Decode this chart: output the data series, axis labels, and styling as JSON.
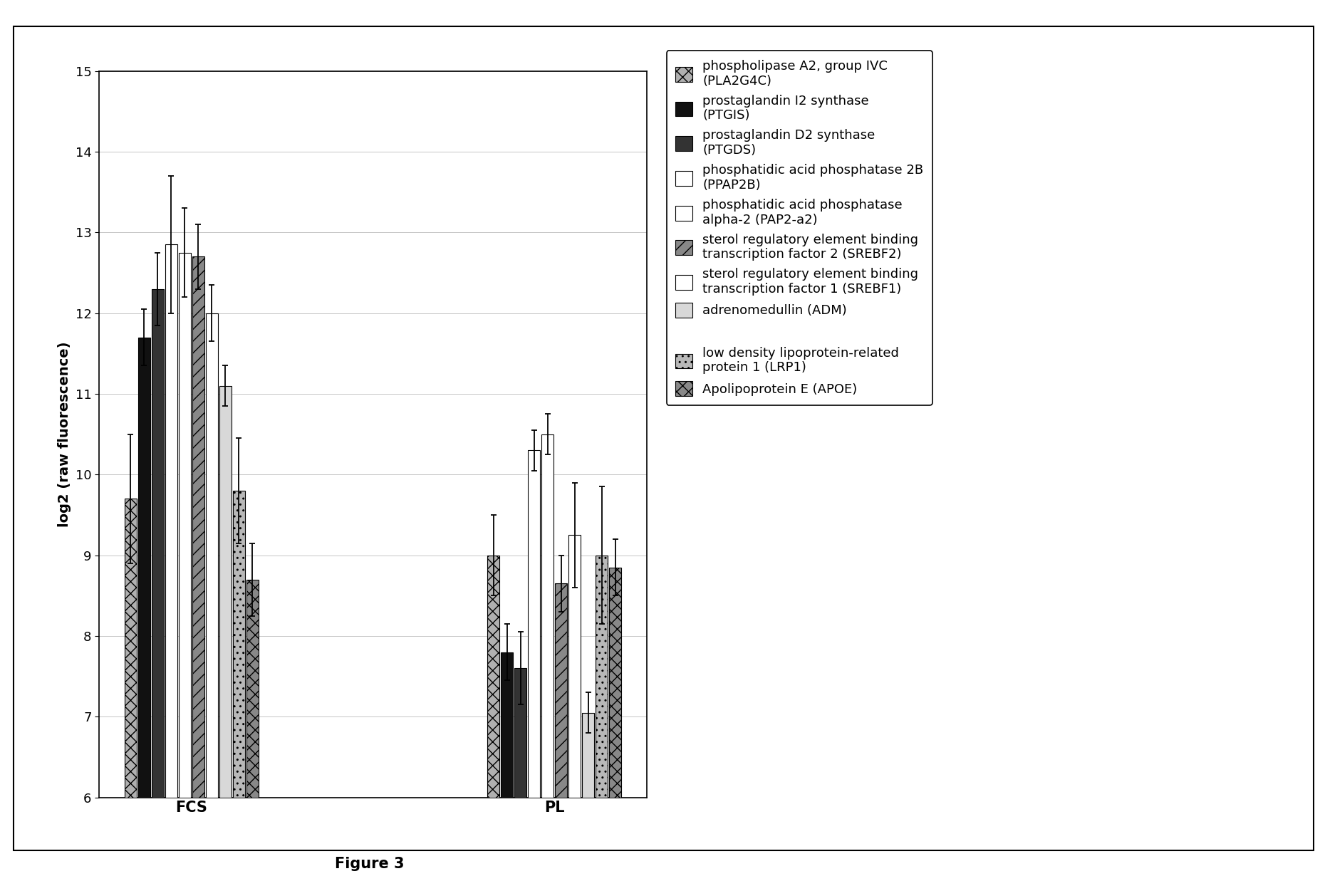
{
  "groups": [
    "FCS",
    "PL"
  ],
  "series": [
    {
      "label": "phospholipase A2, group IVC\n(PLA2G4C)",
      "fcs_val": 9.7,
      "fcs_err": 0.8,
      "pl_val": 9.0,
      "pl_err": 0.5,
      "fc": "#b0b0b0",
      "hatch": "xx",
      "ec": "#000000"
    },
    {
      "label": "prostaglandin I2 synthase\n(PTGIS)",
      "fcs_val": 11.7,
      "fcs_err": 0.35,
      "pl_val": 7.8,
      "pl_err": 0.35,
      "fc": "#111111",
      "hatch": "",
      "ec": "#000000"
    },
    {
      "label": "prostaglandin D2 synthase\n(PTGDS)",
      "fcs_val": 12.3,
      "fcs_err": 0.45,
      "pl_val": 7.6,
      "pl_err": 0.45,
      "fc": "#333333",
      "hatch": "",
      "ec": "#000000"
    },
    {
      "label": "phosphatidic acid phosphatase 2B\n(PPAP2B)",
      "fcs_val": 12.85,
      "fcs_err": 0.85,
      "pl_val": 10.3,
      "pl_err": 0.25,
      "fc": "#ffffff",
      "hatch": "",
      "ec": "#000000"
    },
    {
      "label": "phosphatidic acid phosphatase\nalpha-2 (PAP2-a2)",
      "fcs_val": 12.75,
      "fcs_err": 0.55,
      "pl_val": 10.5,
      "pl_err": 0.25,
      "fc": "#ffffff",
      "hatch": "",
      "ec": "#000000"
    },
    {
      "label": "sterol regulatory element binding\ntranscription factor 2 (SREBF2)",
      "fcs_val": 12.7,
      "fcs_err": 0.4,
      "pl_val": 8.65,
      "pl_err": 0.35,
      "fc": "#888888",
      "hatch": "//",
      "ec": "#000000"
    },
    {
      "label": "sterol regulatory element binding\ntranscription factor 1 (SREBF1)",
      "fcs_val": 12.0,
      "fcs_err": 0.35,
      "pl_val": 9.25,
      "pl_err": 0.65,
      "fc": "#ffffff",
      "hatch": "",
      "ec": "#000000"
    },
    {
      "label": "adrenomedullin (ADM)",
      "fcs_val": 11.1,
      "fcs_err": 0.25,
      "pl_val": 7.05,
      "pl_err": 0.25,
      "fc": "#d8d8d8",
      "hatch": "",
      "ec": "#000000"
    },
    {
      "label": "low density lipoprotein-related\nprotein 1 (LRP1)",
      "fcs_val": 9.8,
      "fcs_err": 0.65,
      "pl_val": 9.0,
      "pl_err": 0.85,
      "fc": "#b8b8b8",
      "hatch": "..",
      "ec": "#000000"
    },
    {
      "label": "Apolipoprotein E (APOE)",
      "fcs_val": 8.7,
      "fcs_err": 0.45,
      "pl_val": 8.85,
      "pl_err": 0.35,
      "fc": "#888888",
      "hatch": "xx",
      "ec": "#000000"
    }
  ],
  "ylim": [
    6,
    15
  ],
  "yticks": [
    6,
    7,
    8,
    9,
    10,
    11,
    12,
    13,
    14,
    15
  ],
  "ylabel": "log2 (raw fluorescence)",
  "group_labels": [
    "FCS",
    "PL"
  ],
  "figure_caption": "Figure 3",
  "background_color": "#ffffff"
}
